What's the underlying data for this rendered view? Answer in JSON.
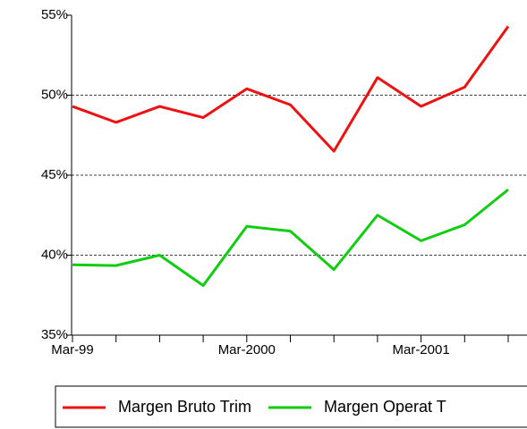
{
  "chart_data": {
    "type": "line",
    "categories": [
      "Mar-99",
      null,
      null,
      null,
      "Mar-2000",
      null,
      null,
      null,
      "Mar-2001",
      null,
      null
    ],
    "series": [
      {
        "name": "Margen Bruto Trim",
        "color": "#ee1111",
        "values": [
          49.3,
          48.3,
          49.3,
          48.6,
          50.4,
          49.4,
          46.5,
          51.1,
          49.3,
          50.5,
          54.3
        ]
      },
      {
        "name": "Margen Operat T",
        "color": "#11cc11",
        "values": [
          39.4,
          39.35,
          40.0,
          38.1,
          41.8,
          41.5,
          39.1,
          42.5,
          40.9,
          41.9,
          44.1
        ]
      }
    ],
    "ylim": [
      35,
      55
    ],
    "yticks": [
      {
        "value": 35,
        "label": "35%"
      },
      {
        "value": 40,
        "label": "40%"
      },
      {
        "value": 45,
        "label": "45%"
      },
      {
        "value": 50,
        "label": "50%"
      },
      {
        "value": 55,
        "label": "55%"
      }
    ],
    "grid": true,
    "legend": "bottom"
  }
}
